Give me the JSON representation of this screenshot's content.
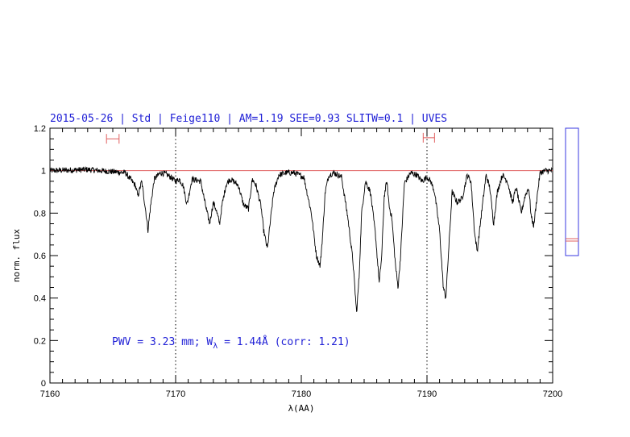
{
  "title": "2015-05-26 | Std | Feige110 | AM=1.19 SEE=0.93 SLITW=0.1 | UVES",
  "annotation": {
    "prefix": "PWV = 3.23 mm; W",
    "subscript": "λ",
    "suffix": " = 1.44Å (corr: 1.21)"
  },
  "colors": {
    "title": "#1f1fd6",
    "spectrum": "#000000",
    "continuum": "#e06060",
    "markers": "#e06060",
    "side_box": "#3a3ae0"
  },
  "chart_data": {
    "type": "line",
    "title": "2015-05-26 | Std | Feige110 | AM=1.19 SEE=0.93 SLITW=0.1 | UVES",
    "xlabel": "λ(AA)",
    "ylabel": "norm. flux",
    "xlim": [
      7160,
      7200
    ],
    "ylim": [
      0,
      1.2
    ],
    "x_ticks": [
      "7160",
      "7170",
      "7180",
      "7190",
      "7200"
    ],
    "y_ticks": [
      "0",
      "0.2",
      "0.4",
      "0.6",
      "0.8",
      "1",
      "1.2"
    ],
    "grid": false,
    "vertical_dotted_lines_x": [
      7170,
      7190
    ],
    "continuum_level": 1.0,
    "continuum_window_markers": [
      {
        "x_start": 7164.5,
        "x_end": 7165.5,
        "y": 1.15
      },
      {
        "x_start": 7189.7,
        "x_end": 7190.6,
        "y": 1.155
      }
    ],
    "series": [
      {
        "x": [
          7160.0,
          7163.0,
          7165.0,
          7166.0,
          7166.4,
          7166.8,
          7167.0,
          7167.3,
          7167.6,
          7167.8,
          7168.0,
          7168.3,
          7168.8,
          7169.2,
          7169.6,
          7170.0,
          7170.3,
          7170.6,
          7170.9,
          7171.3,
          7172.0,
          7172.4,
          7172.7,
          7173.0,
          7173.2,
          7173.5,
          7173.7,
          7174.0,
          7174.3,
          7174.6,
          7175.0,
          7175.4,
          7175.8,
          7176.1,
          7176.4,
          7176.8,
          7177.0,
          7177.3,
          7177.5,
          7177.8,
          7178.2,
          7178.8,
          7179.4,
          7180.2,
          7180.8,
          7181.2,
          7181.5,
          7181.7,
          7181.9,
          7182.2,
          7182.6,
          7183.2,
          7183.7,
          7184.1,
          7184.4,
          7184.6,
          7184.8,
          7185.1,
          7185.5,
          7185.9,
          7186.2,
          7186.4,
          7186.6,
          7186.8,
          7187.0,
          7187.2,
          7187.5,
          7187.7,
          7187.9,
          7188.2,
          7188.7,
          7189.2,
          7189.6,
          7190.0,
          7190.3,
          7190.6,
          7191.0,
          7191.3,
          7191.5,
          7191.7,
          7192.0,
          7192.4,
          7192.8,
          7193.2,
          7193.5,
          7193.8,
          7194.0,
          7194.3,
          7194.7,
          7195.0,
          7195.3,
          7195.6,
          7196.0,
          7196.4,
          7196.8,
          7197.1,
          7197.5,
          7197.8,
          7198.1,
          7198.3,
          7198.5,
          7198.7,
          7199.0,
          7199.4,
          7200.0
        ],
        "y": [
          1.0,
          1.005,
          0.995,
          0.99,
          0.96,
          0.93,
          0.88,
          0.95,
          0.82,
          0.72,
          0.83,
          0.96,
          0.99,
          0.985,
          0.97,
          0.95,
          0.96,
          0.93,
          0.84,
          0.96,
          0.95,
          0.83,
          0.75,
          0.85,
          0.82,
          0.75,
          0.84,
          0.93,
          0.96,
          0.95,
          0.93,
          0.84,
          0.82,
          0.96,
          0.93,
          0.83,
          0.72,
          0.63,
          0.74,
          0.9,
          0.98,
          0.99,
          0.99,
          0.97,
          0.8,
          0.6,
          0.55,
          0.7,
          0.9,
          0.98,
          0.99,
          0.97,
          0.78,
          0.58,
          0.33,
          0.5,
          0.8,
          0.95,
          0.9,
          0.7,
          0.47,
          0.6,
          0.88,
          0.95,
          0.83,
          0.78,
          0.55,
          0.45,
          0.6,
          0.94,
          0.99,
          0.98,
          0.95,
          0.97,
          0.95,
          0.9,
          0.72,
          0.45,
          0.4,
          0.6,
          0.9,
          0.85,
          0.87,
          0.98,
          0.95,
          0.7,
          0.62,
          0.78,
          0.98,
          0.92,
          0.75,
          0.9,
          0.98,
          0.95,
          0.85,
          0.92,
          0.8,
          0.88,
          0.92,
          0.78,
          0.74,
          0.85,
          0.99,
          1.0,
          1.0
        ]
      }
    ]
  }
}
